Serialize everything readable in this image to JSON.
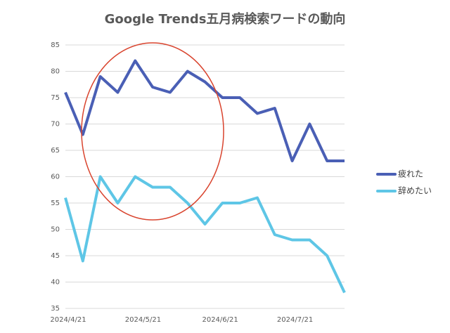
{
  "chart_data": {
    "type": "line",
    "title": "Google Trends五月病検索ワードの動向",
    "categories": [
      null,
      null,
      null,
      null,
      null,
      null,
      null,
      null,
      null,
      null,
      null,
      null,
      null,
      null,
      null,
      null,
      null
    ],
    "series": [
      {
        "name": "疲れた",
        "color": "#4a5fb5",
        "values": [
          76,
          68,
          79,
          76,
          82,
          77,
          76,
          80,
          78,
          75,
          75,
          72,
          73,
          63,
          70,
          63,
          63
        ]
      },
      {
        "name": "辞めたい",
        "color": "#5ec6e6",
        "values": [
          56,
          44,
          60,
          55,
          60,
          58,
          58,
          55,
          51,
          55,
          55,
          56,
          49,
          48,
          48,
          45,
          38
        ]
      }
    ],
    "xlim": [
      0,
      16
    ],
    "xticks": [
      {
        "value": 0,
        "label": "2024/4/21"
      },
      {
        "value": 4.29,
        "label": "2024/5/21"
      },
      {
        "value": 8.71,
        "label": "2024/6/21"
      },
      {
        "value": 13,
        "label": "2024/7/21"
      }
    ],
    "ylim": [
      35,
      85
    ],
    "yticks": [
      35,
      40,
      45,
      50,
      55,
      60,
      65,
      70,
      75,
      80,
      85
    ],
    "grid": true,
    "legend": "right"
  }
}
